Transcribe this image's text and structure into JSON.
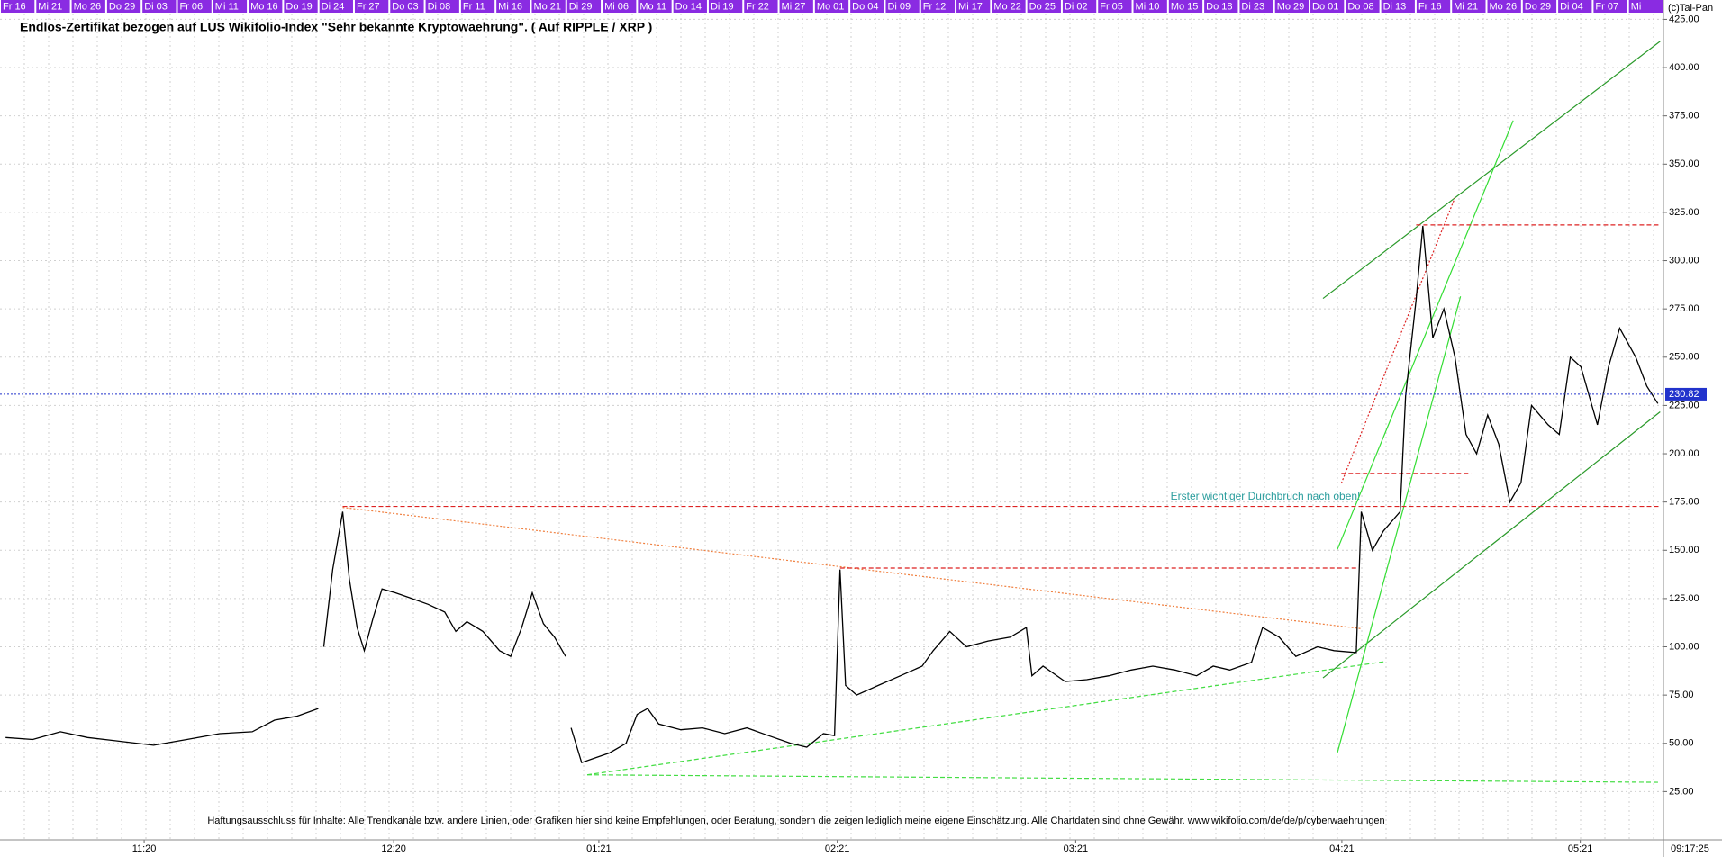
{
  "chart_data": {
    "type": "line",
    "title": "Endlos-Zertifikat bezogen auf LUS Wikifolio-Index \"Sehr bekannte Kryptowaehrung\". ( Auf RIPPLE / XRP )",
    "copyright": "(c)Tai-Pan",
    "time": "09:17:25",
    "disclaimer": "Haftungsausschluss für Inhalte: Alle Trendkanäle bzw. andere Linien, oder Grafiken hier sind keine Empfehlungen, oder Beratung, sondern die zeigen lediglich meine eigene Einschätzung. Alle Chartdaten sind ohne Gewähr.  www.wikifolio.com/de/de/p/cyberwaehrungen",
    "annotation": "Erster wichtiger Durchbruch nach oben!",
    "date_strip": [
      "Fr 16",
      "Mi 21",
      "Mo 26",
      "Do 29",
      "Di 03",
      "Fr 06",
      "Mi 11",
      "Mo 16",
      "Do 19",
      "Di 24",
      "Fr 27",
      "Do 03",
      "Di 08",
      "Fr 11",
      "Mi 16",
      "Mo 21",
      "Di 29",
      "Mi 06",
      "Mo 11",
      "Do 14",
      "Di 19",
      "Fr 22",
      "Mi 27",
      "Mo 01",
      "Do 04",
      "Di 09",
      "Fr 12",
      "Mi 17",
      "Mo 22",
      "Do 25",
      "Di 02",
      "Fr 05",
      "Mi 10",
      "Mo 15",
      "Do 18",
      "Di 23",
      "Mo 29",
      "Do 01",
      "Do 08",
      "Di 13",
      "Fr 16",
      "Mi 21",
      "Mo 26",
      "Do 29",
      "Di 04",
      "Fr 07",
      "Mi"
    ],
    "xlim": [
      0,
      300
    ],
    "xticks": [
      {
        "value": 26,
        "label": "11:20"
      },
      {
        "value": 71,
        "label": "12:20"
      },
      {
        "value": 108,
        "label": "01:21"
      },
      {
        "value": 151,
        "label": "02:21"
      },
      {
        "value": 194,
        "label": "03:21"
      },
      {
        "value": 242,
        "label": "04:21"
      },
      {
        "value": 285,
        "label": "05:21"
      }
    ],
    "ylim": [
      0,
      428
    ],
    "yticks": [
      {
        "value": 25,
        "label": "25.00"
      },
      {
        "value": 50,
        "label": "50.00"
      },
      {
        "value": 75,
        "label": "75.00"
      },
      {
        "value": 100,
        "label": "100.00"
      },
      {
        "value": 125,
        "label": "125.00"
      },
      {
        "value": 150,
        "label": "150.00"
      },
      {
        "value": 175,
        "label": "175.00"
      },
      {
        "value": 200,
        "label": "200.00"
      },
      {
        "value": 225,
        "label": "225.00"
      },
      {
        "value": 250,
        "label": "250.00"
      },
      {
        "value": 275,
        "label": "275.00"
      },
      {
        "value": 300,
        "label": "300.00"
      },
      {
        "value": 325,
        "label": "325.00"
      },
      {
        "value": 350,
        "label": "350.00"
      },
      {
        "value": 375,
        "label": "375.00"
      },
      {
        "value": 400,
        "label": "400.00"
      },
      {
        "value": 425,
        "label": "425.00"
      }
    ],
    "grid": true,
    "last_price": 230.82,
    "series": [
      {
        "color": "#000000",
        "x": [
          1.0,
          5.9,
          10.9,
          15.8,
          21.8,
          27.7,
          33.7,
          39.6,
          45.5,
          49.5,
          53.5,
          57.4,
          57.8,
          58.4,
          60.0,
          61.8,
          63.0,
          64.4,
          65.7,
          67.3,
          68.9,
          71.3,
          74.3,
          77.2,
          80.2,
          82.2,
          84.2,
          87.1,
          90.1,
          92.1,
          94.1,
          96.0,
          98.0,
          100.0,
          102.0,
          102.4,
          103.0,
          104.9,
          106.9,
          109.9,
          112.9,
          114.9,
          116.8,
          118.8,
          122.8,
          126.7,
          130.7,
          134.7,
          138.6,
          142.6,
          145.5,
          148.5,
          150.5,
          151.5,
          152.5,
          154.5,
          158.4,
          162.4,
          166.3,
          168.3,
          171.3,
          174.3,
          178.2,
          182.2,
          185.1,
          186.1,
          188.1,
          192.1,
          196.0,
          200.0,
          204.0,
          207.9,
          211.9,
          215.8,
          218.8,
          221.8,
          225.7,
          227.7,
          230.7,
          233.7,
          237.6,
          240.6,
          244.6,
          245.5,
          247.5,
          249.5,
          252.5,
          253.5,
          255.4,
          256.6,
          258.4,
          260.4,
          262.4,
          264.4,
          266.3,
          268.3,
          270.3,
          272.3,
          274.3,
          276.2,
          279.2,
          281.2,
          283.2,
          285.1,
          288.1,
          290.1,
          292.1,
          295.0,
          297.0,
          299.0
        ],
        "values": [
          53,
          52,
          56,
          53,
          51,
          49,
          52,
          55,
          56,
          62,
          64,
          68,
          null,
          100,
          140,
          170,
          135,
          110,
          98,
          115,
          130,
          128,
          125,
          122,
          118,
          108,
          113,
          108,
          98,
          95,
          110,
          128,
          112,
          105,
          95,
          null,
          58,
          40,
          42,
          45,
          50,
          65,
          68,
          60,
          57,
          58,
          55,
          58,
          54,
          50,
          48,
          55,
          54,
          140,
          80,
          75,
          80,
          85,
          90,
          98,
          108,
          100,
          103,
          105,
          110,
          85,
          90,
          82,
          83,
          85,
          88,
          90,
          88,
          85,
          90,
          88,
          92,
          110,
          105,
          95,
          100,
          98,
          97,
          170,
          150,
          160,
          170,
          230,
          280,
          318,
          260,
          275,
          250,
          210,
          200,
          220,
          205,
          175,
          185,
          225,
          215,
          210,
          250,
          245,
          215,
          245,
          265,
          250,
          235,
          226
        ]
      }
    ],
    "lines": [
      {
        "x": [
          238.6,
          299.4
        ],
        "y": [
          280.4,
          413.6
        ],
        "color": "#2a9a2a",
        "style": "solid"
      },
      {
        "x": [
          238.6,
          299.4
        ],
        "y": [
          83.9,
          221.7
        ],
        "color": "#2a9a2a",
        "style": "solid"
      },
      {
        "x": [
          241.2,
          272.9
        ],
        "y": [
          150.5,
          372.6
        ],
        "color": "#33dd33",
        "style": "solid"
      },
      {
        "x": [
          241.2,
          263.4
        ],
        "y": [
          45.2,
          281.5
        ],
        "color": "#33dd33",
        "style": "solid"
      },
      {
        "x": [
          105.9,
          249.9
        ],
        "y": [
          33.7,
          92.4
        ],
        "color": "#44dd44",
        "style": "dashed"
      },
      {
        "x": [
          105.9,
          299.4
        ],
        "y": [
          33.7,
          29.8
        ],
        "color": "#44dd44",
        "style": "dashed"
      },
      {
        "x": [
          61.8,
          245.5
        ],
        "y": [
          172.2,
          109.4
        ],
        "color": "#f08040",
        "style": "dotted"
      },
      {
        "x": [
          61.8,
          299.4
        ],
        "y": [
          172.7,
          172.7
        ],
        "color": "#dd2222",
        "style": "dashed"
      },
      {
        "x": [
          151.5,
          244.6
        ],
        "y": [
          140.8,
          140.8
        ],
        "color": "#dd2222",
        "style": "dashed"
      },
      {
        "x": [
          241.9,
          265.3
        ],
        "y": [
          189.8,
          189.8
        ],
        "color": "#dd2222",
        "style": "dashed"
      },
      {
        "x": [
          255.4,
          299.4
        ],
        "y": [
          318.5,
          318.5
        ],
        "color": "#dd2222",
        "style": "dashed"
      },
      {
        "x": [
          241.9,
          262.4
        ],
        "y": [
          184.7,
          332.7
        ],
        "color": "#dd2222",
        "style": "dotted"
      }
    ]
  }
}
